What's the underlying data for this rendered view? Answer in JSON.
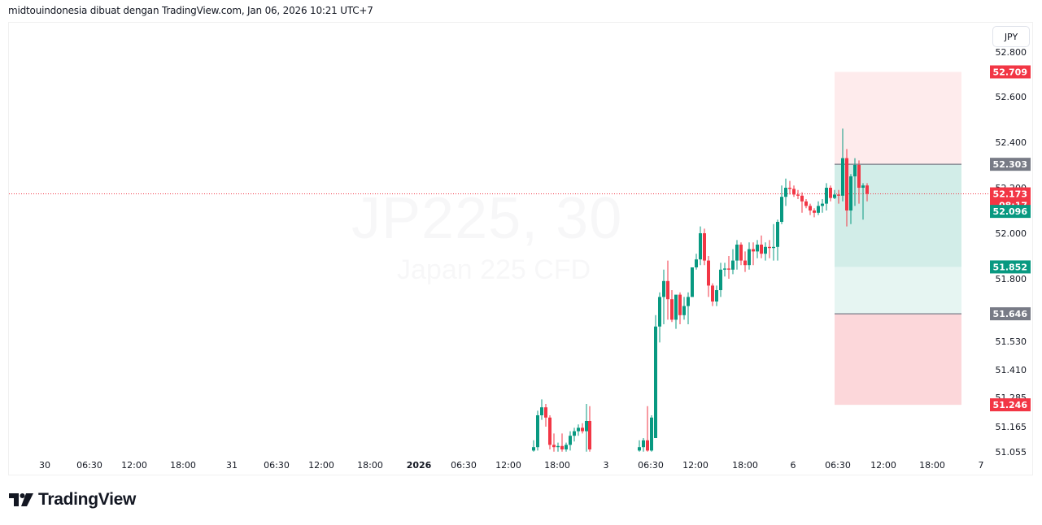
{
  "header": {
    "caption": "midtouindonesia dibuat dengan TradingView.com, Jan 06, 2026 10:21 UTC+7"
  },
  "toolbar": {
    "currency_label": "JPY"
  },
  "watermark": {
    "symbol_interval": "JP225, 30",
    "description": "Japan 225 CFD"
  },
  "footer": {
    "logo_text": "TradingView"
  },
  "colors": {
    "up": "#089981",
    "down": "#f23645",
    "neutral_tag": "#787b86",
    "target_zone": "rgba(8,153,129,0.18)",
    "target_zone_light": "rgba(8,153,129,0.10)",
    "stop_zone_upper": "rgba(242,54,69,0.10)",
    "stop_zone_lower": "rgba(242,54,69,0.20)"
  },
  "chart_data": {
    "type": "candlestick",
    "title": "JP225, 30",
    "subtitle": "Japan 225 CFD",
    "currency": "JPY",
    "xlabel": "",
    "ylabel": "",
    "ylim": [
      51.02,
      52.88
    ],
    "grid": false,
    "x_ticks": [
      {
        "label": "30",
        "x": 55,
        "bold": false
      },
      {
        "label": "06:30",
        "x": 110,
        "bold": false
      },
      {
        "label": "12:00",
        "x": 165,
        "bold": false
      },
      {
        "label": "18:00",
        "x": 225,
        "bold": false
      },
      {
        "label": "31",
        "x": 285,
        "bold": false
      },
      {
        "label": "06:30",
        "x": 340,
        "bold": false
      },
      {
        "label": "12:00",
        "x": 395,
        "bold": false
      },
      {
        "label": "18:00",
        "x": 455,
        "bold": false
      },
      {
        "label": "2026",
        "x": 515,
        "bold": true
      },
      {
        "label": "06:30",
        "x": 570,
        "bold": false
      },
      {
        "label": "12:00",
        "x": 625,
        "bold": false
      },
      {
        "label": "18:00",
        "x": 685,
        "bold": false
      },
      {
        "label": "3",
        "x": 745,
        "bold": false
      },
      {
        "label": "06:30",
        "x": 800,
        "bold": false
      },
      {
        "label": "12:00",
        "x": 855,
        "bold": false
      },
      {
        "label": "18:00",
        "x": 916,
        "bold": false
      },
      {
        "label": "6",
        "x": 975,
        "bold": false
      },
      {
        "label": "06:30",
        "x": 1030,
        "bold": false
      },
      {
        "label": "12:00",
        "x": 1086,
        "bold": false
      },
      {
        "label": "18:00",
        "x": 1146,
        "bold": false
      },
      {
        "label": "7",
        "x": 1206,
        "bold": false
      }
    ],
    "y_ticks": [
      "52.800",
      "52.600",
      "52.400",
      "52.200",
      "52.000",
      "51.800",
      "51.530",
      "51.410",
      "51.285",
      "51.165",
      "51.055"
    ],
    "price_tags": [
      {
        "value": "52.709",
        "kind": "stop_upper",
        "color": "#f23645"
      },
      {
        "value": "52.303",
        "kind": "entry_upper",
        "color": "#787b86"
      },
      {
        "value": "52.173",
        "countdown": "08:17",
        "kind": "last_price",
        "color": "#f23645"
      },
      {
        "value": "52.096",
        "kind": "target",
        "color": "#089981"
      },
      {
        "value": "51.852",
        "kind": "target",
        "color": "#089981"
      },
      {
        "value": "51.646",
        "kind": "entry_lower",
        "color": "#787b86"
      },
      {
        "value": "51.246",
        "kind": "stop_lower",
        "color": "#f23645"
      }
    ],
    "last_price": 52.173,
    "candles": [
      {
        "x": 656,
        "o": 51.045,
        "h": 51.09,
        "l": 51.04,
        "c": 51.06
      },
      {
        "x": 661,
        "o": 51.06,
        "h": 51.22,
        "l": 51.045,
        "c": 51.2
      },
      {
        "x": 666,
        "o": 51.2,
        "h": 51.27,
        "l": 51.18,
        "c": 51.235
      },
      {
        "x": 671,
        "o": 51.235,
        "h": 51.25,
        "l": 51.15,
        "c": 51.19
      },
      {
        "x": 676,
        "o": 51.19,
        "h": 51.2,
        "l": 51.05,
        "c": 51.07
      },
      {
        "x": 681,
        "o": 51.07,
        "h": 51.12,
        "l": 51.04,
        "c": 51.06
      },
      {
        "x": 686,
        "o": 51.06,
        "h": 51.08,
        "l": 51.04,
        "c": 51.065
      },
      {
        "x": 691,
        "o": 51.065,
        "h": 51.12,
        "l": 51.04,
        "c": 51.05
      },
      {
        "x": 696,
        "o": 51.05,
        "h": 51.08,
        "l": 51.04,
        "c": 51.07
      },
      {
        "x": 701,
        "o": 51.07,
        "h": 51.13,
        "l": 51.045,
        "c": 51.11
      },
      {
        "x": 706,
        "o": 51.11,
        "h": 51.145,
        "l": 51.085,
        "c": 51.13
      },
      {
        "x": 711,
        "o": 51.13,
        "h": 51.16,
        "l": 51.11,
        "c": 51.145
      },
      {
        "x": 716,
        "o": 51.145,
        "h": 51.165,
        "l": 51.12,
        "c": 51.13
      },
      {
        "x": 721,
        "o": 51.13,
        "h": 51.25,
        "l": 51.04,
        "c": 51.175
      },
      {
        "x": 725,
        "o": 51.175,
        "h": 51.24,
        "l": 51.04,
        "c": 51.05
      },
      {
        "x": 786,
        "o": 51.045,
        "h": 51.09,
        "l": 51.04,
        "c": 51.06
      },
      {
        "x": 791,
        "o": 51.06,
        "h": 51.1,
        "l": 51.04,
        "c": 51.09
      },
      {
        "x": 796,
        "o": 51.09,
        "h": 51.24,
        "l": 51.04,
        "c": 51.045
      },
      {
        "x": 801,
        "o": 51.045,
        "h": 51.2,
        "l": 51.04,
        "c": 51.19
      },
      {
        "x": 806,
        "o": 51.1,
        "h": 51.64,
        "l": 51.1,
        "c": 51.59
      },
      {
        "x": 811,
        "o": 51.59,
        "h": 51.74,
        "l": 51.52,
        "c": 51.72
      },
      {
        "x": 816,
        "o": 51.72,
        "h": 51.84,
        "l": 51.6,
        "c": 51.79
      },
      {
        "x": 821,
        "o": 51.79,
        "h": 51.88,
        "l": 51.62,
        "c": 51.71
      },
      {
        "x": 826,
        "o": 51.71,
        "h": 51.75,
        "l": 51.61,
        "c": 51.62
      },
      {
        "x": 831,
        "o": 51.62,
        "h": 51.71,
        "l": 51.58,
        "c": 51.73
      },
      {
        "x": 836,
        "o": 51.73,
        "h": 51.74,
        "l": 51.6,
        "c": 51.64
      },
      {
        "x": 841,
        "o": 51.64,
        "h": 51.72,
        "l": 51.62,
        "c": 51.68
      },
      {
        "x": 846,
        "o": 51.68,
        "h": 51.74,
        "l": 51.6,
        "c": 51.72
      },
      {
        "x": 851,
        "o": 51.72,
        "h": 51.85,
        "l": 51.72,
        "c": 51.85
      },
      {
        "x": 856,
        "o": 51.85,
        "h": 51.91,
        "l": 51.84,
        "c": 51.885
      },
      {
        "x": 861,
        "o": 51.885,
        "h": 52.03,
        "l": 51.86,
        "c": 52.0
      },
      {
        "x": 866,
        "o": 52.0,
        "h": 52.02,
        "l": 51.86,
        "c": 51.88
      },
      {
        "x": 871,
        "o": 51.88,
        "h": 51.9,
        "l": 51.72,
        "c": 51.77
      },
      {
        "x": 876,
        "o": 51.77,
        "h": 51.78,
        "l": 51.68,
        "c": 51.7
      },
      {
        "x": 881,
        "o": 51.7,
        "h": 51.77,
        "l": 51.68,
        "c": 51.75
      },
      {
        "x": 886,
        "o": 51.75,
        "h": 51.87,
        "l": 51.72,
        "c": 51.84
      },
      {
        "x": 891,
        "o": 51.84,
        "h": 51.87,
        "l": 51.81,
        "c": 51.845
      },
      {
        "x": 896,
        "o": 51.845,
        "h": 51.9,
        "l": 51.8,
        "c": 51.84
      },
      {
        "x": 901,
        "o": 51.84,
        "h": 51.93,
        "l": 51.82,
        "c": 51.88
      },
      {
        "x": 906,
        "o": 51.88,
        "h": 51.97,
        "l": 51.84,
        "c": 51.95
      },
      {
        "x": 911,
        "o": 51.95,
        "h": 51.96,
        "l": 51.86,
        "c": 51.88
      },
      {
        "x": 916,
        "o": 51.88,
        "h": 51.92,
        "l": 51.83,
        "c": 51.86
      },
      {
        "x": 921,
        "o": 51.86,
        "h": 51.96,
        "l": 51.84,
        "c": 51.93
      },
      {
        "x": 926,
        "o": 51.93,
        "h": 51.96,
        "l": 51.86,
        "c": 51.92
      },
      {
        "x": 931,
        "o": 51.92,
        "h": 51.97,
        "l": 51.89,
        "c": 51.95
      },
      {
        "x": 936,
        "o": 51.95,
        "h": 51.99,
        "l": 51.89,
        "c": 51.91
      },
      {
        "x": 941,
        "o": 51.91,
        "h": 51.96,
        "l": 51.88,
        "c": 51.94
      },
      {
        "x": 946,
        "o": 51.94,
        "h": 51.97,
        "l": 51.89,
        "c": 51.935
      },
      {
        "x": 951,
        "o": 51.935,
        "h": 52.04,
        "l": 51.88,
        "c": 51.94
      },
      {
        "x": 956,
        "o": 51.94,
        "h": 52.06,
        "l": 51.88,
        "c": 52.05
      },
      {
        "x": 961,
        "o": 52.05,
        "h": 52.21,
        "l": 52.04,
        "c": 52.16
      },
      {
        "x": 966,
        "o": 52.16,
        "h": 52.24,
        "l": 52.12,
        "c": 52.2
      },
      {
        "x": 971,
        "o": 52.2,
        "h": 52.23,
        "l": 52.17,
        "c": 52.195
      },
      {
        "x": 976,
        "o": 52.195,
        "h": 52.21,
        "l": 52.16,
        "c": 52.17
      },
      {
        "x": 981,
        "o": 52.17,
        "h": 52.19,
        "l": 52.15,
        "c": 52.165
      },
      {
        "x": 986,
        "o": 52.165,
        "h": 52.18,
        "l": 52.09,
        "c": 52.14
      },
      {
        "x": 991,
        "o": 52.14,
        "h": 52.15,
        "l": 52.11,
        "c": 52.12
      },
      {
        "x": 996,
        "o": 52.12,
        "h": 52.13,
        "l": 52.08,
        "c": 52.1
      },
      {
        "x": 1001,
        "o": 52.1,
        "h": 52.11,
        "l": 52.07,
        "c": 52.09
      },
      {
        "x": 1006,
        "o": 52.09,
        "h": 52.14,
        "l": 52.08,
        "c": 52.12
      },
      {
        "x": 1011,
        "o": 52.12,
        "h": 52.15,
        "l": 52.09,
        "c": 52.13
      },
      {
        "x": 1016,
        "o": 52.13,
        "h": 52.22,
        "l": 52.1,
        "c": 52.2
      },
      {
        "x": 1021,
        "o": 52.2,
        "h": 52.21,
        "l": 52.14,
        "c": 52.155
      },
      {
        "x": 1026,
        "o": 52.155,
        "h": 52.19,
        "l": 52.15,
        "c": 52.17
      },
      {
        "x": 1031,
        "o": 52.17,
        "h": 52.19,
        "l": 52.13,
        "c": 52.165
      },
      {
        "x": 1036,
        "o": 52.165,
        "h": 52.46,
        "l": 52.14,
        "c": 52.33
      },
      {
        "x": 1041,
        "o": 52.33,
        "h": 52.37,
        "l": 52.03,
        "c": 52.1
      },
      {
        "x": 1046,
        "o": 52.1,
        "h": 52.26,
        "l": 52.04,
        "c": 52.25
      },
      {
        "x": 1051,
        "o": 52.25,
        "h": 52.33,
        "l": 52.12,
        "c": 52.3
      },
      {
        "x": 1056,
        "o": 52.3,
        "h": 52.32,
        "l": 52.13,
        "c": 52.2
      },
      {
        "x": 1061,
        "o": 52.2,
        "h": 52.22,
        "l": 52.06,
        "c": 52.21
      },
      {
        "x": 1066,
        "o": 52.21,
        "h": 52.22,
        "l": 52.14,
        "c": 52.173
      }
    ],
    "position_tool": {
      "x_start": 1026,
      "x_end": 1182,
      "zones": [
        {
          "from": 52.709,
          "to": 52.303,
          "kind": "stop",
          "fill": "rgba(242,54,69,0.10)"
        },
        {
          "from": 52.303,
          "to": 52.096,
          "kind": "target",
          "fill": "rgba(8,153,129,0.18)"
        },
        {
          "from": 52.096,
          "to": 51.852,
          "kind": "target",
          "fill": "rgba(8,153,129,0.18)"
        },
        {
          "from": 51.852,
          "to": 51.646,
          "kind": "target_light",
          "fill": "rgba(8,153,129,0.10)"
        },
        {
          "from": 51.646,
          "to": 51.246,
          "kind": "stop",
          "fill": "rgba(242,54,69,0.20)"
        }
      ]
    }
  }
}
